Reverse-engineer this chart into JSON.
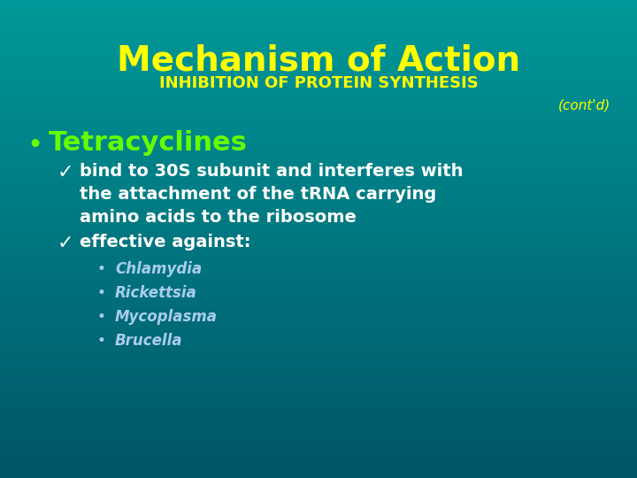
{
  "title": "Mechanism of Action",
  "subtitle": "INHIBITION OF PROTEIN SYNTHESIS",
  "contd": "(cont'd)",
  "bg_color": "#007878",
  "bg_top_color": "#005555",
  "bg_bottom_color": "#009999",
  "title_color": "#FFFF00",
  "subtitle_color": "#FFFF00",
  "contd_color": "#FFFF00",
  "bullet_color": "#66FF00",
  "check_color": "#FFFFFF",
  "body_color": "#FFFFFF",
  "sub_bullet_color": "#AACCEE",
  "bullet1": "Tetracyclines",
  "check1_line1": "bind to 30S subunit and interferes with",
  "check1_line2": "the attachment of the tRNA carrying",
  "check1_line3": "amino acids to the ribosome",
  "check2": "effective against:",
  "sub_bullets": [
    "Chlamydia",
    "Rickettsia",
    "Mycoplasma",
    "Brucella"
  ]
}
